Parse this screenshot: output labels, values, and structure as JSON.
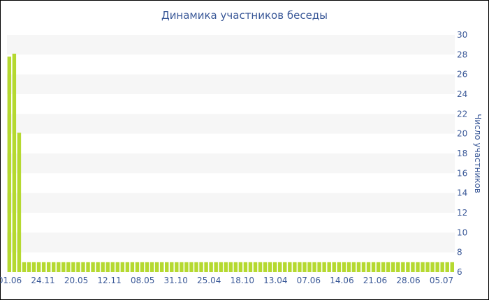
{
  "chart_data": {
    "type": "bar",
    "title": "Динамика участников беседы",
    "ylabel": "Число участников",
    "xlabel": "",
    "ylim": [
      6,
      30
    ],
    "y_ticks": [
      6,
      8,
      10,
      12,
      14,
      16,
      18,
      20,
      22,
      24,
      26,
      28,
      30
    ],
    "x_tick_labels": [
      "01.06",
      "24.11",
      "20.05",
      "12.11",
      "08.05",
      "31.10",
      "25.04",
      "18.10",
      "13.04",
      "07.06",
      "14.06",
      "21.06",
      "28.06",
      "05.07"
    ],
    "values": [
      27.8,
      28.1,
      20.1,
      7,
      7,
      7,
      7,
      7,
      7,
      7,
      7,
      7,
      7,
      7,
      7,
      7,
      7,
      7,
      7,
      7,
      7,
      7,
      7,
      7,
      7,
      7,
      7,
      7,
      7,
      7,
      7,
      7,
      7,
      7,
      7,
      7,
      7,
      7,
      7,
      7,
      7,
      7,
      7,
      7,
      7,
      7,
      7,
      7,
      7,
      7,
      7,
      7,
      7,
      7,
      7,
      7,
      7,
      7,
      7,
      7,
      7,
      7,
      7,
      7,
      7,
      7,
      7,
      7,
      7,
      7,
      7,
      7,
      7,
      7,
      7,
      7,
      7,
      7,
      7,
      7,
      7,
      7,
      7,
      7,
      7,
      7,
      7,
      7,
      7,
      7,
      7
    ],
    "bar_color": "#b5d930",
    "band_color": "#f6f6f6",
    "axis_text_color": "#3b5998",
    "grid": true,
    "y_axis_side": "right"
  }
}
